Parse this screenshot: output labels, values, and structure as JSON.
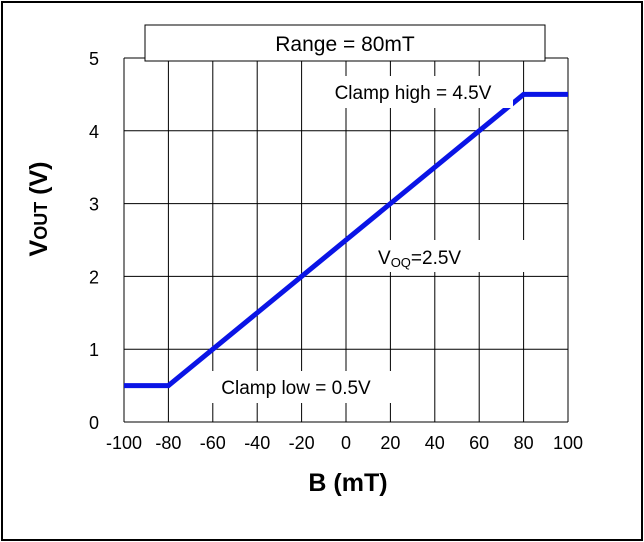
{
  "chart_data": {
    "type": "line",
    "x": [
      -100,
      -80,
      80,
      100
    ],
    "series": [
      {
        "values": [
          0.5,
          0.5,
          4.5,
          4.5
        ],
        "color": "#0a14e6"
      }
    ],
    "xlabel": "B (mT)",
    "ylabel": {
      "main": "V",
      "sub": "OUT",
      "unit": " (V)"
    },
    "xlim": [
      -100,
      100
    ],
    "ylim": [
      0,
      5
    ],
    "xticks": [
      -100,
      -80,
      -60,
      -40,
      -20,
      0,
      20,
      40,
      60,
      80,
      100
    ],
    "yticks": [
      0,
      1,
      2,
      3,
      4,
      5
    ],
    "grid": true,
    "annotations": {
      "range": "Range = 80mT",
      "clamp_high": "Clamp high = 4.5V",
      "clamp_low": "Clamp low = 0.5V",
      "voq": {
        "main": "V",
        "sub": "OQ",
        "rest": "=2.5V"
      }
    }
  }
}
